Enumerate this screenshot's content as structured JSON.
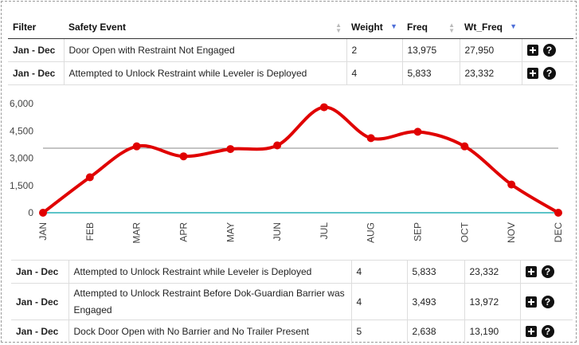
{
  "top_table": {
    "headers": {
      "filter": "Filter",
      "event": "Safety Event",
      "weight": "Weight",
      "freq": "Freq",
      "wt_freq": "Wt_Freq"
    },
    "rows": [
      {
        "filter": "Jan - Dec",
        "event": "Door Open with Restraint Not Engaged",
        "weight": "2",
        "freq": "13,975",
        "wt_freq": "27,950"
      },
      {
        "filter": "Jan - Dec",
        "event": "Attempted to Unlock Restraint while Leveler is Deployed",
        "weight": "4",
        "freq": "5,833",
        "wt_freq": "23,332"
      }
    ]
  },
  "chart_data": {
    "type": "line",
    "categories": [
      "JAN",
      "FEB",
      "MAR",
      "APR",
      "MAY",
      "JUN",
      "JUL",
      "AUG",
      "SEP",
      "OCT",
      "NOV",
      "DEC"
    ],
    "series": [
      {
        "values": [
          0,
          1950,
          3650,
          3100,
          3500,
          3700,
          5800,
          4100,
          4450,
          3650,
          1550,
          0
        ]
      }
    ],
    "reference_line": 3550,
    "ylim": [
      0,
      6000
    ],
    "yticks": [
      0,
      1500,
      3000,
      4500,
      6000
    ],
    "ytick_labels": [
      "0",
      "1,500",
      "3,000",
      "4,500",
      "6,000"
    ],
    "line_color": "#e00000",
    "reference_color": "#888888",
    "baseline_color": "#5bc4c8",
    "grid": false
  },
  "bottom_table": {
    "rows": [
      {
        "filter": "Jan - Dec",
        "event": "Attempted to Unlock Restraint while Leveler is Deployed",
        "weight": "4",
        "freq": "5,833",
        "wt_freq": "23,332"
      },
      {
        "filter": "Jan - Dec",
        "event": "Attempted to Unlock Restraint Before Dok-Guardian Barrier was Engaged",
        "weight": "4",
        "freq": "3,493",
        "wt_freq": "13,972"
      },
      {
        "filter": "Jan - Dec",
        "event": "Dock Door Open with No Barrier and No Trailer Present",
        "weight": "5",
        "freq": "2,638",
        "wt_freq": "13,190"
      }
    ]
  },
  "icons": {
    "expand": "plus-square-icon",
    "help": "question-circle-icon"
  }
}
